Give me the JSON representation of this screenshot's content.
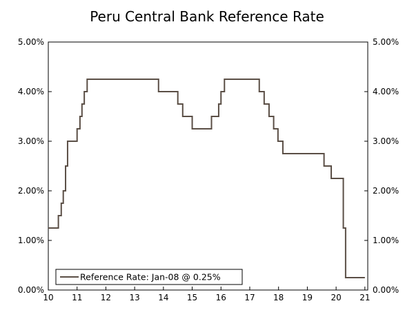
{
  "chart_data": {
    "type": "line",
    "title": "Peru Central Bank Reference Rate",
    "xlabel": "",
    "ylabel": "",
    "x_ticks": [
      "10",
      "11",
      "12",
      "13",
      "14",
      "15",
      "16",
      "17",
      "18",
      "19",
      "20",
      "21"
    ],
    "y_ticks": [
      "0.00%",
      "1.00%",
      "2.00%",
      "3.00%",
      "4.00%",
      "5.00%"
    ],
    "y_ticks_right": [
      "0.00%",
      "1.00%",
      "2.00%",
      "3.00%",
      "4.00%",
      "5.00%"
    ],
    "xlim": [
      10,
      21.1
    ],
    "ylim": [
      0,
      5
    ],
    "grid": false,
    "step": true,
    "legend": {
      "position": "bottom-left"
    },
    "series": [
      {
        "name": "Reference Rate: Jan-08 @ 0.25%",
        "color": "#5a4e45",
        "points": [
          [
            10.0,
            1.25
          ],
          [
            10.35,
            1.5
          ],
          [
            10.45,
            1.75
          ],
          [
            10.52,
            2.0
          ],
          [
            10.6,
            2.5
          ],
          [
            10.67,
            3.0
          ],
          [
            11.0,
            3.25
          ],
          [
            11.1,
            3.5
          ],
          [
            11.17,
            3.75
          ],
          [
            11.25,
            4.0
          ],
          [
            11.35,
            4.25
          ],
          [
            13.83,
            4.0
          ],
          [
            14.5,
            3.75
          ],
          [
            14.67,
            3.5
          ],
          [
            15.0,
            3.25
          ],
          [
            15.67,
            3.5
          ],
          [
            15.92,
            3.75
          ],
          [
            16.0,
            4.0
          ],
          [
            16.12,
            4.25
          ],
          [
            17.33,
            4.0
          ],
          [
            17.5,
            3.75
          ],
          [
            17.67,
            3.5
          ],
          [
            17.83,
            3.25
          ],
          [
            17.98,
            3.0
          ],
          [
            18.15,
            2.75
          ],
          [
            19.58,
            2.5
          ],
          [
            19.83,
            2.25
          ],
          [
            20.25,
            1.25
          ],
          [
            20.33,
            0.25
          ],
          [
            21.0,
            0.25
          ]
        ]
      }
    ]
  }
}
